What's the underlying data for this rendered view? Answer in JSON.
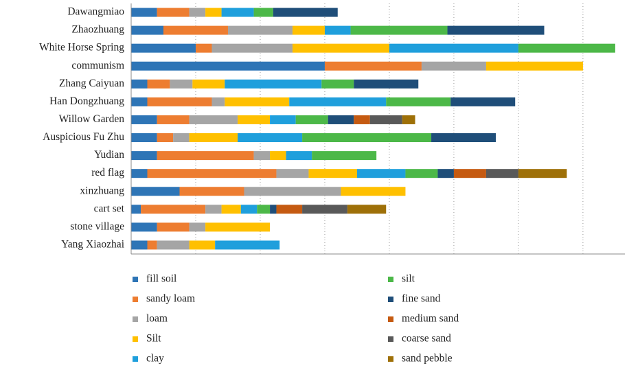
{
  "chart_data": {
    "type": "stacked_barh",
    "categories": [
      "Dawangmiao",
      "Zhaozhuang",
      "White Horse Spring",
      "communism",
      "Zhang Caiyuan",
      "Han Dongzhuang",
      "Willow Garden",
      "Auspicious Fu Zhu",
      "Yudian",
      "red flag",
      "xinzhuang",
      "cart set",
      "stone village",
      "Yang Xiaozhai"
    ],
    "series": [
      {
        "name": "fill soil",
        "color": "#2e75b6",
        "values": [
          4,
          5,
          10,
          30,
          2.5,
          2.5,
          4,
          4,
          4,
          2.5,
          7.5,
          1.5,
          4,
          2.5
        ]
      },
      {
        "name": "sandy loam",
        "color": "#ed7d31",
        "values": [
          5,
          10,
          2.5,
          15,
          3.5,
          10,
          5,
          2.5,
          15,
          20,
          10,
          10,
          5,
          1.5
        ]
      },
      {
        "name": "loam",
        "color": "#a5a5a5",
        "values": [
          2.5,
          10,
          12.5,
          10,
          3.5,
          2,
          7.5,
          2.5,
          2.5,
          5,
          15,
          2.5,
          2.5,
          5
        ]
      },
      {
        "name": "Silt",
        "color": "#ffc000",
        "values": [
          2.5,
          5,
          15,
          15,
          5,
          10,
          5,
          7.5,
          2.5,
          7.5,
          10,
          3,
          10,
          4
        ]
      },
      {
        "name": "clay",
        "color": "#1f9fdc",
        "values": [
          5,
          4,
          20,
          null,
          15,
          15,
          4,
          10,
          4,
          7.5,
          null,
          2.5,
          null,
          10
        ]
      },
      {
        "name": "silt",
        "color": "#4cb848",
        "values": [
          3,
          15,
          15,
          null,
          5,
          10,
          5,
          20,
          10,
          5,
          null,
          2,
          null,
          null
        ]
      },
      {
        "name": "fine sand",
        "color": "#1f4e79",
        "values": [
          10,
          15,
          null,
          null,
          10,
          10,
          4,
          10,
          null,
          2.5,
          null,
          1,
          null,
          null
        ]
      },
      {
        "name": "medium sand",
        "color": "#c55a11",
        "values": [
          null,
          null,
          null,
          null,
          null,
          null,
          2.5,
          null,
          null,
          5,
          null,
          4,
          null,
          null
        ]
      },
      {
        "name": "coarse sand",
        "color": "#595959",
        "values": [
          null,
          null,
          null,
          null,
          null,
          null,
          5,
          null,
          null,
          5,
          null,
          7,
          null,
          null
        ]
      },
      {
        "name": "sand pebble",
        "color": "#9e7008",
        "values": [
          null,
          null,
          null,
          null,
          null,
          null,
          2,
          null,
          null,
          7.5,
          null,
          6,
          null,
          null
        ]
      }
    ],
    "xlim": [
      0,
      76.5
    ],
    "xticks": [
      10,
      20,
      30,
      40,
      50,
      60,
      70
    ],
    "grid": true,
    "tick_labels": false,
    "legend": "bottom"
  }
}
